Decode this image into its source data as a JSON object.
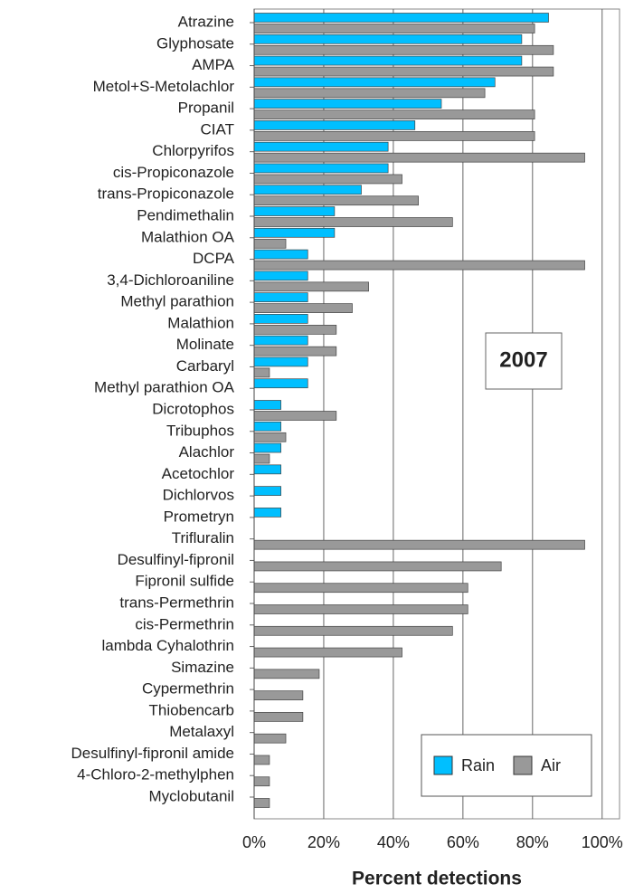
{
  "chart_data": {
    "type": "bar",
    "orientation": "horizontal",
    "x_label": "Percent detections",
    "annotation": "2007",
    "categories": [
      "Atrazine",
      "Glyphosate",
      "AMPA",
      "Metol+S-Metolachlor",
      "Propanil",
      "CIAT",
      "Chlorpyrifos",
      "cis-Propiconazole",
      "trans-Propiconazole",
      "Pendimethalin",
      "Malathion OA",
      "DCPA",
      "3,4-Dichloroaniline",
      "Methyl parathion",
      "Malathion",
      "Molinate",
      "Carbaryl",
      "Methyl parathion OA",
      "Dicrotophos",
      "Tribuphos",
      "Alachlor",
      "Acetochlor",
      "Dichlorvos",
      "Prometryn",
      "Trifluralin",
      "Desulfinyl-fipronil",
      "Fipronil sulfide",
      "trans-Permethrin",
      "cis-Permethrin",
      "lambda Cyhalothrin",
      "Simazine",
      "Cypermethrin",
      "Thiobencarb",
      "Metalaxyl",
      "Desulfinyl-fipronil amide",
      "4-Chloro-2-methylphen",
      "Myclobutanil"
    ],
    "series": [
      {
        "name": "Rain",
        "color": "#00bfff",
        "values": [
          84.6,
          76.9,
          76.9,
          69.2,
          53.8,
          46.2,
          38.5,
          38.5,
          30.8,
          23.1,
          23.1,
          15.4,
          15.4,
          15.4,
          15.4,
          15.4,
          15.4,
          15.4,
          7.7,
          7.7,
          7.7,
          7.7,
          7.7,
          7.7,
          0,
          0,
          0,
          0,
          0,
          0,
          0,
          0,
          0,
          0,
          0,
          0,
          0
        ]
      },
      {
        "name": "Air",
        "color": "#999999",
        "values": [
          80.6,
          86,
          86,
          66.3,
          80.6,
          80.6,
          95,
          42.5,
          47.2,
          57,
          9.1,
          95,
          32.9,
          28.2,
          23.6,
          23.6,
          4.4,
          0,
          23.6,
          9.1,
          4.4,
          0,
          0,
          0,
          95,
          71,
          61.4,
          61.4,
          57,
          42.5,
          18.7,
          14,
          14,
          9.1,
          4.4,
          4.4,
          4.4
        ]
      }
    ],
    "xlim": [
      0,
      105
    ],
    "xticks": [
      {
        "value": 0,
        "label": "0%"
      },
      {
        "value": 20,
        "label": "20%"
      },
      {
        "value": 40,
        "label": "40%"
      },
      {
        "value": 60,
        "label": "60%"
      },
      {
        "value": 80,
        "label": "80%"
      },
      {
        "value": 100,
        "label": "100%"
      }
    ],
    "grid": true,
    "legend_position": "lower right"
  }
}
